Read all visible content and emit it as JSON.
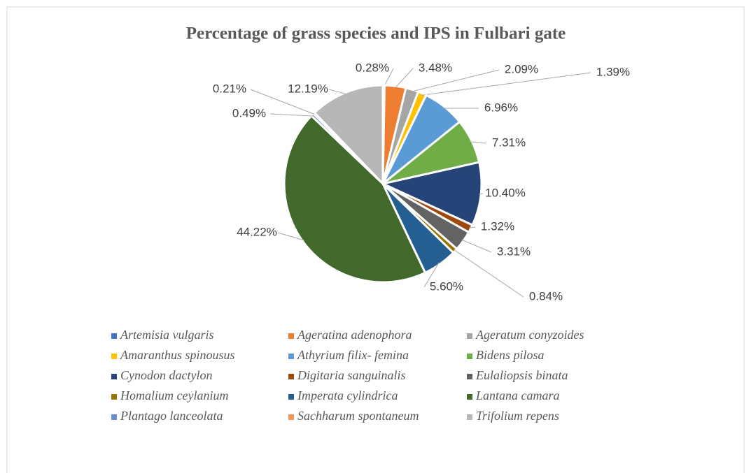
{
  "chart_data": {
    "type": "pie",
    "title": "Percentage of grass species and IPS in Fulbari gate",
    "categories": [
      "Artemisia vulgaris",
      "Ageratina adenophora",
      "Ageratum conyzoides",
      "Amaranthus spinousus",
      "Athyrium filix- femina",
      "Bidens pilosa",
      "Cynodon dactylon",
      "Digitaria sanguinalis",
      "Eulaliopsis binata",
      "Homalium ceylanium",
      "Imperata cylindrica",
      "Lantana camara",
      "Plantago lanceolata",
      "Sachharum spontaneum",
      "Trifolium repens"
    ],
    "values": [
      0.28,
      3.48,
      2.09,
      1.39,
      6.96,
      7.31,
      10.4,
      1.32,
      3.31,
      0.84,
      5.6,
      44.22,
      0.49,
      0.21,
      12.19
    ],
    "value_labels": [
      "0.28%",
      "3.48%",
      "2.09%",
      "1.39%",
      "6.96%",
      "7.31%",
      "10.40%",
      "1.32%",
      "3.31%",
      "0.84%",
      "5.60%",
      "44.22%",
      "0.49%",
      "0.21%",
      "12.19%"
    ],
    "colors": [
      "#4472c4",
      "#ed7d31",
      "#a5a5a5",
      "#ffc000",
      "#5b9bd5",
      "#70ad47",
      "#264478",
      "#9e480e",
      "#636363",
      "#997300",
      "#255e91",
      "#43682b",
      "#698ed0",
      "#f1975a",
      "#b7b7b7"
    ],
    "legend": "bottom"
  }
}
